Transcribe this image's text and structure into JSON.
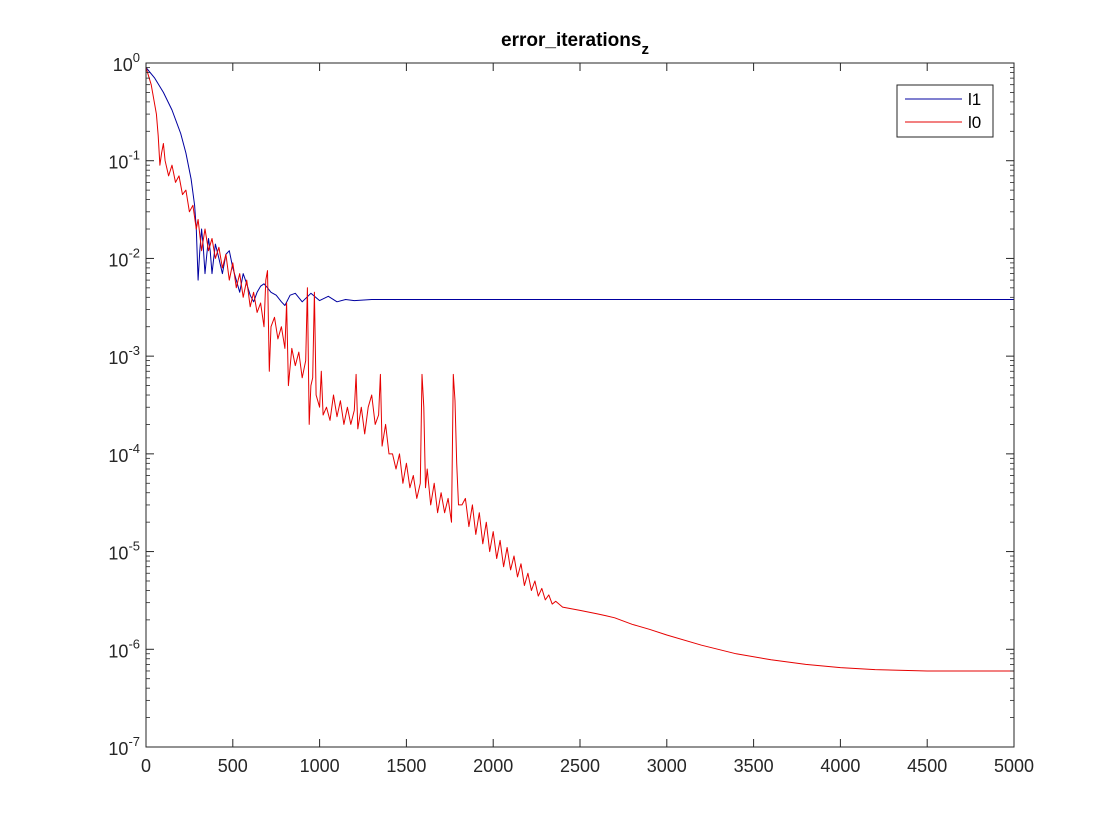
{
  "chart_data": {
    "type": "line",
    "title": "error_iterations",
    "title_subscript": "z",
    "xlabel": "",
    "ylabel": "",
    "xlim": [
      0,
      5000
    ],
    "ylim": [
      1e-07,
      1
    ],
    "yscale": "log",
    "grid": false,
    "legend_position": "top-right",
    "x_ticks": [
      0,
      500,
      1000,
      1500,
      2000,
      2500,
      3000,
      3500,
      4000,
      4500,
      5000
    ],
    "x_tick_labels": [
      "0",
      "500",
      "1000",
      "1500",
      "2000",
      "2500",
      "3000",
      "3500",
      "4000",
      "4500",
      "5000"
    ],
    "y_ticks": [
      {
        "value": 1,
        "base": "10",
        "exp": "0"
      },
      {
        "value": 0.1,
        "base": "10",
        "exp": "-1"
      },
      {
        "value": 0.01,
        "base": "10",
        "exp": "-2"
      },
      {
        "value": 0.001,
        "base": "10",
        "exp": "-3"
      },
      {
        "value": 0.0001,
        "base": "10",
        "exp": "-4"
      },
      {
        "value": 1e-05,
        "base": "10",
        "exp": "-5"
      },
      {
        "value": 1e-06,
        "base": "10",
        "exp": "-6"
      },
      {
        "value": 1e-07,
        "base": "10",
        "exp": "-7"
      }
    ],
    "series": [
      {
        "name": "l1",
        "color": "#0000a0",
        "points": [
          [
            0,
            0.9
          ],
          [
            50,
            0.7
          ],
          [
            100,
            0.5
          ],
          [
            150,
            0.33
          ],
          [
            200,
            0.19
          ],
          [
            230,
            0.12
          ],
          [
            260,
            0.065
          ],
          [
            280,
            0.035
          ],
          [
            290,
            0.02
          ],
          [
            300,
            0.006
          ],
          [
            310,
            0.012
          ],
          [
            320,
            0.02
          ],
          [
            330,
            0.013
          ],
          [
            340,
            0.007
          ],
          [
            350,
            0.011
          ],
          [
            360,
            0.016
          ],
          [
            370,
            0.012
          ],
          [
            380,
            0.007
          ],
          [
            390,
            0.01
          ],
          [
            400,
            0.014
          ],
          [
            420,
            0.01
          ],
          [
            440,
            0.007
          ],
          [
            460,
            0.011
          ],
          [
            480,
            0.012
          ],
          [
            500,
            0.008
          ],
          [
            520,
            0.006
          ],
          [
            540,
            0.0045
          ],
          [
            560,
            0.007
          ],
          [
            580,
            0.0055
          ],
          [
            600,
            0.0042
          ],
          [
            620,
            0.0036
          ],
          [
            640,
            0.0045
          ],
          [
            660,
            0.0052
          ],
          [
            680,
            0.0055
          ],
          [
            700,
            0.005
          ],
          [
            720,
            0.0045
          ],
          [
            750,
            0.0042
          ],
          [
            780,
            0.0036
          ],
          [
            800,
            0.0033
          ],
          [
            830,
            0.0042
          ],
          [
            860,
            0.0044
          ],
          [
            900,
            0.0036
          ],
          [
            950,
            0.0044
          ],
          [
            1000,
            0.0037
          ],
          [
            1050,
            0.0041
          ],
          [
            1100,
            0.0036
          ],
          [
            1150,
            0.0038
          ],
          [
            1200,
            0.0037
          ],
          [
            1300,
            0.0038
          ],
          [
            1500,
            0.0038
          ],
          [
            2000,
            0.0038
          ],
          [
            3000,
            0.0038
          ],
          [
            4000,
            0.0038
          ],
          [
            5000,
            0.0038
          ]
        ]
      },
      {
        "name": "l0",
        "color": "#e60000",
        "points": [
          [
            0,
            0.9
          ],
          [
            30,
            0.6
          ],
          [
            60,
            0.3
          ],
          [
            70,
            0.18
          ],
          [
            80,
            0.09
          ],
          [
            90,
            0.12
          ],
          [
            100,
            0.15
          ],
          [
            110,
            0.1
          ],
          [
            130,
            0.07
          ],
          [
            150,
            0.09
          ],
          [
            170,
            0.06
          ],
          [
            190,
            0.07
          ],
          [
            210,
            0.045
          ],
          [
            230,
            0.05
          ],
          [
            250,
            0.03
          ],
          [
            270,
            0.035
          ],
          [
            290,
            0.02
          ],
          [
            300,
            0.025
          ],
          [
            320,
            0.012
          ],
          [
            340,
            0.02
          ],
          [
            360,
            0.012
          ],
          [
            380,
            0.016
          ],
          [
            400,
            0.01
          ],
          [
            420,
            0.013
          ],
          [
            440,
            0.008
          ],
          [
            460,
            0.011
          ],
          [
            480,
            0.006
          ],
          [
            500,
            0.009
          ],
          [
            520,
            0.005
          ],
          [
            540,
            0.007
          ],
          [
            560,
            0.004
          ],
          [
            580,
            0.006
          ],
          [
            600,
            0.0032
          ],
          [
            620,
            0.0045
          ],
          [
            640,
            0.0028
          ],
          [
            660,
            0.0035
          ],
          [
            680,
            0.002
          ],
          [
            690,
            0.006
          ],
          [
            700,
            0.0075
          ],
          [
            710,
            0.0007
          ],
          [
            720,
            0.002
          ],
          [
            740,
            0.0025
          ],
          [
            760,
            0.0015
          ],
          [
            780,
            0.002
          ],
          [
            800,
            0.0012
          ],
          [
            810,
            0.0035
          ],
          [
            820,
            0.0005
          ],
          [
            840,
            0.0012
          ],
          [
            860,
            0.0008
          ],
          [
            880,
            0.0011
          ],
          [
            900,
            0.0006
          ],
          [
            920,
            0.0009
          ],
          [
            930,
            0.005
          ],
          [
            940,
            0.0002
          ],
          [
            950,
            0.0005
          ],
          [
            960,
            0.0006
          ],
          [
            970,
            0.0045
          ],
          [
            980,
            0.0004
          ],
          [
            1000,
            0.0003
          ],
          [
            1010,
            0.0007
          ],
          [
            1020,
            0.00025
          ],
          [
            1040,
            0.0003
          ],
          [
            1060,
            0.00022
          ],
          [
            1080,
            0.0004
          ],
          [
            1100,
            0.00024
          ],
          [
            1120,
            0.00035
          ],
          [
            1140,
            0.0002
          ],
          [
            1160,
            0.0003
          ],
          [
            1180,
            0.0002
          ],
          [
            1200,
            0.00028
          ],
          [
            1210,
            0.00065
          ],
          [
            1220,
            0.00018
          ],
          [
            1240,
            0.0003
          ],
          [
            1260,
            0.00016
          ],
          [
            1280,
            0.0003
          ],
          [
            1300,
            0.0004
          ],
          [
            1320,
            0.0002
          ],
          [
            1340,
            0.00025
          ],
          [
            1350,
            0.00065
          ],
          [
            1360,
            0.00012
          ],
          [
            1380,
            0.0002
          ],
          [
            1400,
            0.0001
          ],
          [
            1420,
            0.0001
          ],
          [
            1440,
            7e-05
          ],
          [
            1460,
            0.0001
          ],
          [
            1480,
            5e-05
          ],
          [
            1500,
            8e-05
          ],
          [
            1520,
            4.5e-05
          ],
          [
            1540,
            6e-05
          ],
          [
            1560,
            3.5e-05
          ],
          [
            1580,
            5e-05
          ],
          [
            1590,
            0.00065
          ],
          [
            1600,
            0.0003
          ],
          [
            1610,
            4.5e-05
          ],
          [
            1620,
            7e-05
          ],
          [
            1640,
            3e-05
          ],
          [
            1660,
            5e-05
          ],
          [
            1680,
            2.5e-05
          ],
          [
            1700,
            4e-05
          ],
          [
            1720,
            2.5e-05
          ],
          [
            1740,
            3.5e-05
          ],
          [
            1760,
            2e-05
          ],
          [
            1770,
            0.00065
          ],
          [
            1780,
            0.00035
          ],
          [
            1790,
            8e-05
          ],
          [
            1800,
            3e-05
          ],
          [
            1820,
            3e-05
          ],
          [
            1840,
            3.5e-05
          ],
          [
            1860,
            1.8e-05
          ],
          [
            1880,
            3e-05
          ],
          [
            1900,
            1.5e-05
          ],
          [
            1920,
            2.5e-05
          ],
          [
            1940,
            1.2e-05
          ],
          [
            1960,
            2e-05
          ],
          [
            1980,
            1e-05
          ],
          [
            2000,
            1.6e-05
          ],
          [
            2020,
            8.5e-06
          ],
          [
            2040,
            1.3e-05
          ],
          [
            2060,
            7e-06
          ],
          [
            2080,
            1.1e-05
          ],
          [
            2100,
            6.5e-06
          ],
          [
            2120,
            9e-06
          ],
          [
            2140,
            5.5e-06
          ],
          [
            2160,
            7.5e-06
          ],
          [
            2180,
            4.5e-06
          ],
          [
            2200,
            6e-06
          ],
          [
            2220,
            4e-06
          ],
          [
            2240,
            5e-06
          ],
          [
            2260,
            3.5e-06
          ],
          [
            2280,
            4.2e-06
          ],
          [
            2300,
            3.2e-06
          ],
          [
            2320,
            3.6e-06
          ],
          [
            2340,
            2.9e-06
          ],
          [
            2360,
            3.1e-06
          ],
          [
            2400,
            2.7e-06
          ],
          [
            2450,
            2.6e-06
          ],
          [
            2500,
            2.5e-06
          ],
          [
            2550,
            2.4e-06
          ],
          [
            2600,
            2.3e-06
          ],
          [
            2650,
            2.2e-06
          ],
          [
            2700,
            2.1e-06
          ],
          [
            2800,
            1.8e-06
          ],
          [
            2900,
            1.6e-06
          ],
          [
            3000,
            1.4e-06
          ],
          [
            3200,
            1.1e-06
          ],
          [
            3400,
            9e-07
          ],
          [
            3600,
            7.8e-07
          ],
          [
            3800,
            7e-07
          ],
          [
            4000,
            6.5e-07
          ],
          [
            4200,
            6.2e-07
          ],
          [
            4500,
            6e-07
          ],
          [
            4800,
            6e-07
          ],
          [
            5000,
            6e-07
          ]
        ]
      }
    ]
  }
}
